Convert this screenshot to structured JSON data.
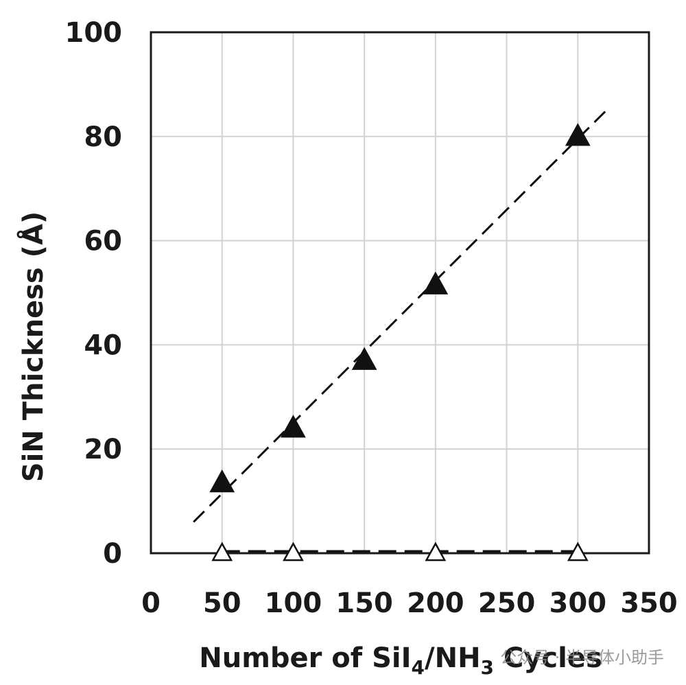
{
  "chart_data": {
    "type": "scatter",
    "title": "",
    "xlabel": {
      "prefix": "Number of SiI",
      "sub1": "4",
      "mid": "/NH",
      "sub2": "3",
      "suffix": " Cycles"
    },
    "ylabel": "SiN Thickness (Å)",
    "xlim": [
      0,
      350
    ],
    "ylim": [
      0,
      100
    ],
    "xticks": [
      0,
      50,
      100,
      150,
      200,
      250,
      300,
      350
    ],
    "yticks": [
      0,
      20,
      40,
      60,
      80,
      100
    ],
    "grid": true,
    "series": [
      {
        "marker": "filled-triangle",
        "color": "#111111",
        "x": [
          50,
          100,
          150,
          200,
          300
        ],
        "y": [
          13.5,
          24,
          37,
          51.5,
          80
        ],
        "trendline": {
          "style": "dashed",
          "x": [
            30,
            320
          ],
          "y": [
            6,
            85
          ]
        }
      },
      {
        "marker": "open-triangle",
        "color": "#111111",
        "x": [
          50,
          100,
          200,
          300
        ],
        "y": [
          0,
          0,
          0,
          0
        ],
        "trendline": {
          "style": "dashed",
          "x": [
            50,
            300
          ],
          "y": [
            0.4,
            0.4
          ]
        }
      }
    ]
  },
  "watermark": "公众号 · 半导体小助手"
}
